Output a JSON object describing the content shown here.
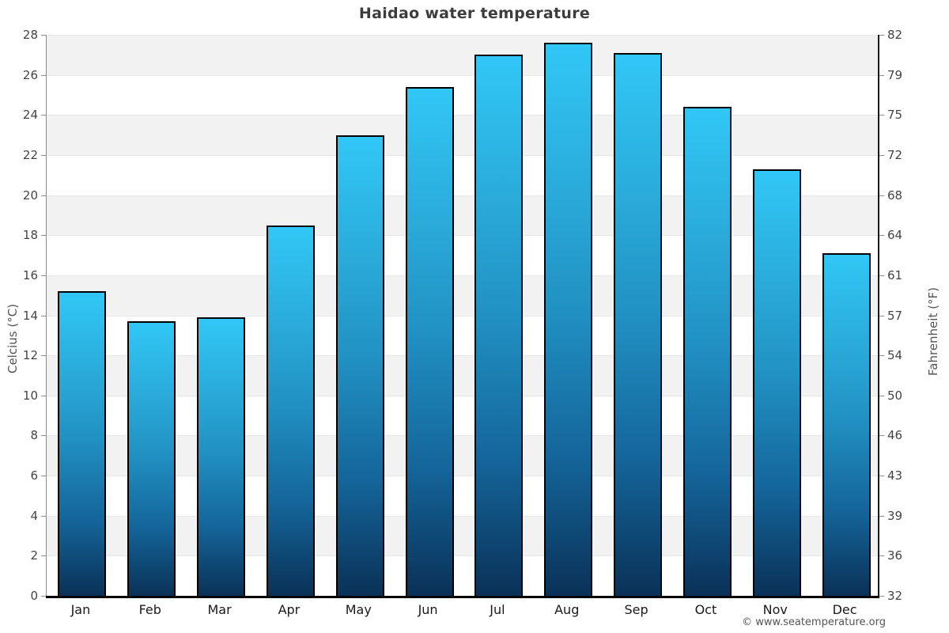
{
  "footer": {
    "credit": "© www.seatemperature.org"
  },
  "chart_data": {
    "type": "bar",
    "title": "Haidao water temperature",
    "categories": [
      "Jan",
      "Feb",
      "Mar",
      "Apr",
      "May",
      "Jun",
      "Jul",
      "Aug",
      "Sep",
      "Oct",
      "Nov",
      "Dec"
    ],
    "series": [
      {
        "name": "Water temperature",
        "unit": "°C",
        "values": [
          15.2,
          13.7,
          13.9,
          18.5,
          23.0,
          25.4,
          27.0,
          27.6,
          27.1,
          24.4,
          21.3,
          17.1
        ]
      }
    ],
    "ylabel_left": "Celcius (°C)",
    "ylabel_right": "Fahrenheit (°F)",
    "ylim": [
      0,
      28
    ],
    "yticks_celsius": [
      0,
      2,
      4,
      6,
      8,
      10,
      12,
      14,
      16,
      18,
      20,
      22,
      24,
      26,
      28
    ],
    "yticks_fahrenheit": [
      32,
      36,
      39,
      43,
      46,
      50,
      54,
      57,
      61,
      64,
      68,
      72,
      75,
      79,
      82
    ],
    "grid": "alternating horizontal bands every 2°C",
    "legend_position": "none",
    "colors": {
      "bar_top": "#31C7F6",
      "bar_mid": "#2191C3",
      "bar_bottom": "#0A3157",
      "bar_border": "#000000",
      "band_gray": "#F2F2F2",
      "band_white": "#FFFFFF",
      "gridline": "#E6E6E6",
      "axis_left": "#8C8C8C",
      "axis_right": "#1A1A1A",
      "axis_bottom": "#000000",
      "title_text": "#3D3D3D",
      "tick_text": "#444444",
      "month_text": "#1A1A1A",
      "footer_text": "#555555"
    }
  }
}
